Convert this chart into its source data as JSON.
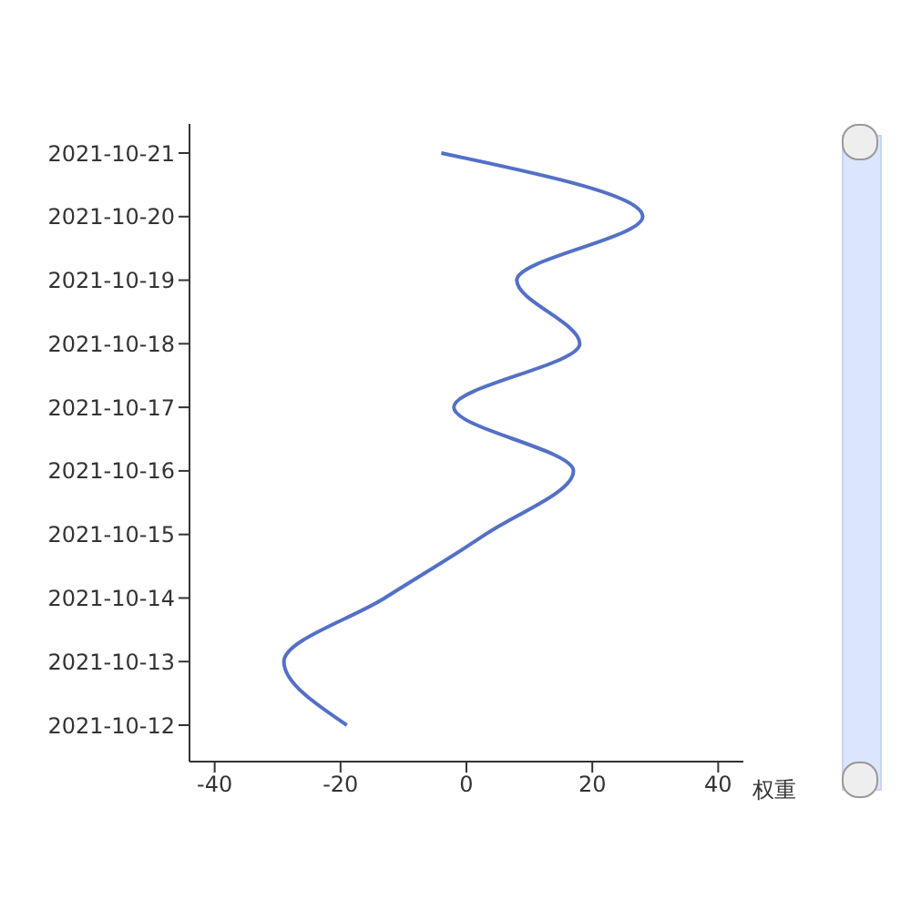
{
  "chart_data": {
    "type": "line",
    "xlabel": "权重",
    "categories": [
      "2021-10-21",
      "2021-10-20",
      "2021-10-19",
      "2021-10-18",
      "2021-10-17",
      "2021-10-16",
      "2021-10-15",
      "2021-10-14",
      "2021-10-13",
      "2021-10-12"
    ],
    "orientation": "horizontal",
    "series": [
      {
        "color": "#5470c6",
        "values": [
          -4,
          28,
          8,
          18,
          -2,
          17,
          3,
          -13,
          -29,
          -19
        ]
      }
    ],
    "xlim": [
      -44,
      44
    ],
    "xticks": [
      -40,
      -20,
      0,
      20,
      40
    ],
    "grid": false,
    "marker": "none",
    "line_style": "solid"
  }
}
